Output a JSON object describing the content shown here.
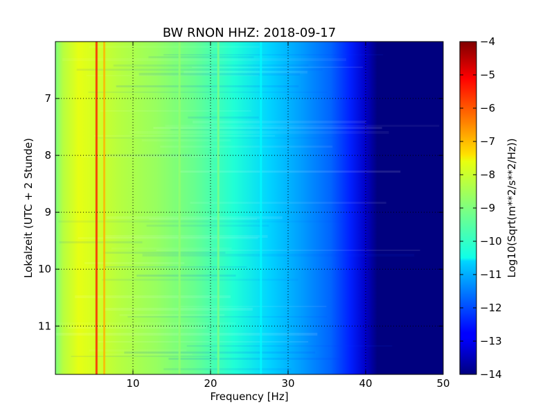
{
  "chart_data": {
    "type": "heatmap",
    "title": "BW RNON HHZ: 2018-09-17",
    "xlabel": "Frequency [Hz]",
    "ylabel": "Lokalzeit (UTC + 2 Stunde)",
    "xlim": [
      0,
      50
    ],
    "ylim": [
      6.0,
      11.85
    ],
    "y_inverted": true,
    "xticks": [
      10,
      20,
      30,
      40,
      50
    ],
    "yticks": [
      7,
      8,
      9,
      10,
      11
    ],
    "grid": true,
    "colormap": "jet",
    "colorbar": {
      "label": "Log10(Sqrt(m**2/s**2/Hz))",
      "range": [
        -14,
        -4
      ],
      "ticks": [
        -4,
        -5,
        -6,
        -7,
        -8,
        -9,
        -10,
        -11,
        -12,
        -13,
        -14
      ]
    },
    "spectrum_profile": {
      "frequency_hz": [
        0,
        1,
        2,
        4,
        6,
        8,
        10,
        14,
        18,
        22,
        26,
        30,
        34,
        38,
        40,
        41,
        42,
        50
      ],
      "log_amplitude": [
        -9.2,
        -8.8,
        -8.3,
        -8.0,
        -8.3,
        -8.5,
        -8.7,
        -9.0,
        -9.4,
        -9.9,
        -10.4,
        -10.9,
        -11.4,
        -12.3,
        -12.8,
        -13.2,
        -14.0,
        -14.0
      ]
    },
    "lines_hz": [
      {
        "frequency_hz": 5.3,
        "log_amplitude": -5.5
      },
      {
        "frequency_hz": 6.3,
        "log_amplitude": -7.0
      },
      {
        "frequency_hz": 16.0,
        "log_amplitude": -8.8
      },
      {
        "frequency_hz": 21.0,
        "log_amplitude": -9.0
      },
      {
        "frequency_hz": 26.5,
        "log_amplitude": -10.3
      }
    ]
  }
}
